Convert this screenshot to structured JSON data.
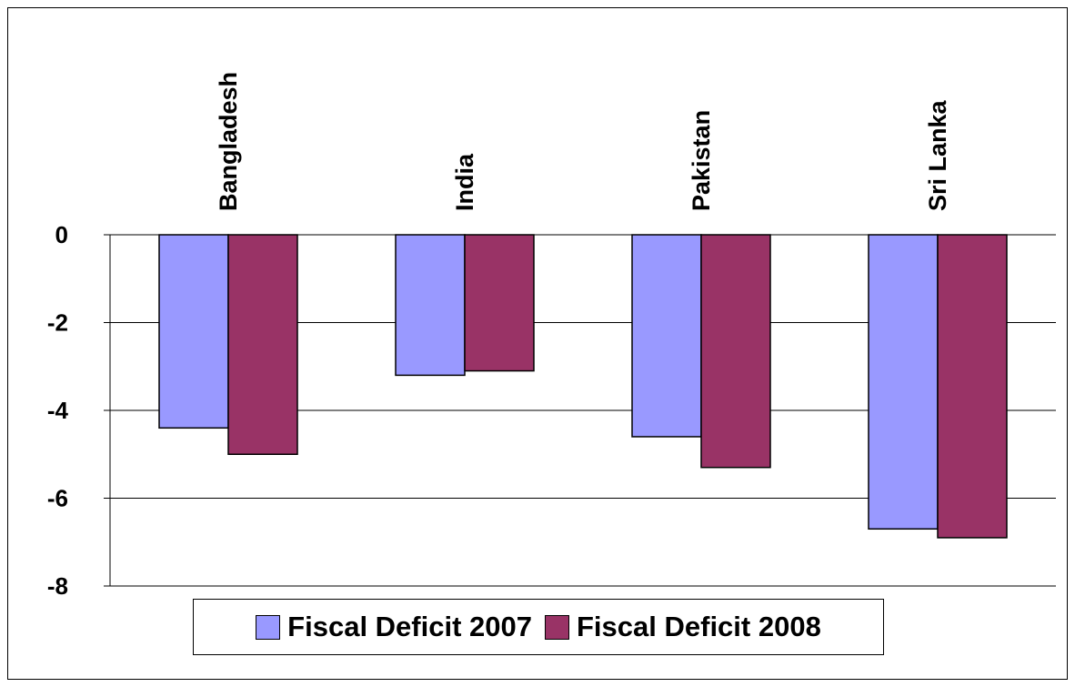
{
  "chart_data": {
    "type": "bar",
    "categories": [
      "Bangladesh",
      "India",
      "Pakistan",
      "Sri Lanka"
    ],
    "series": [
      {
        "name": "Fiscal Deficit 2007",
        "values": [
          -4.4,
          -3.2,
          -4.6,
          -6.7
        ],
        "color": "#9999ff"
      },
      {
        "name": "Fiscal Deficit 2008",
        "values": [
          -5.0,
          -3.1,
          -5.3,
          -6.9
        ],
        "color": "#993366"
      }
    ],
    "yticks": [
      0,
      -2,
      -4,
      -6,
      -8
    ],
    "ylim": [
      -8,
      0
    ],
    "grid": true,
    "category_labels_position": "top-rotated",
    "legend_position": "bottom",
    "title": "",
    "xlabel": "",
    "ylabel": ""
  }
}
